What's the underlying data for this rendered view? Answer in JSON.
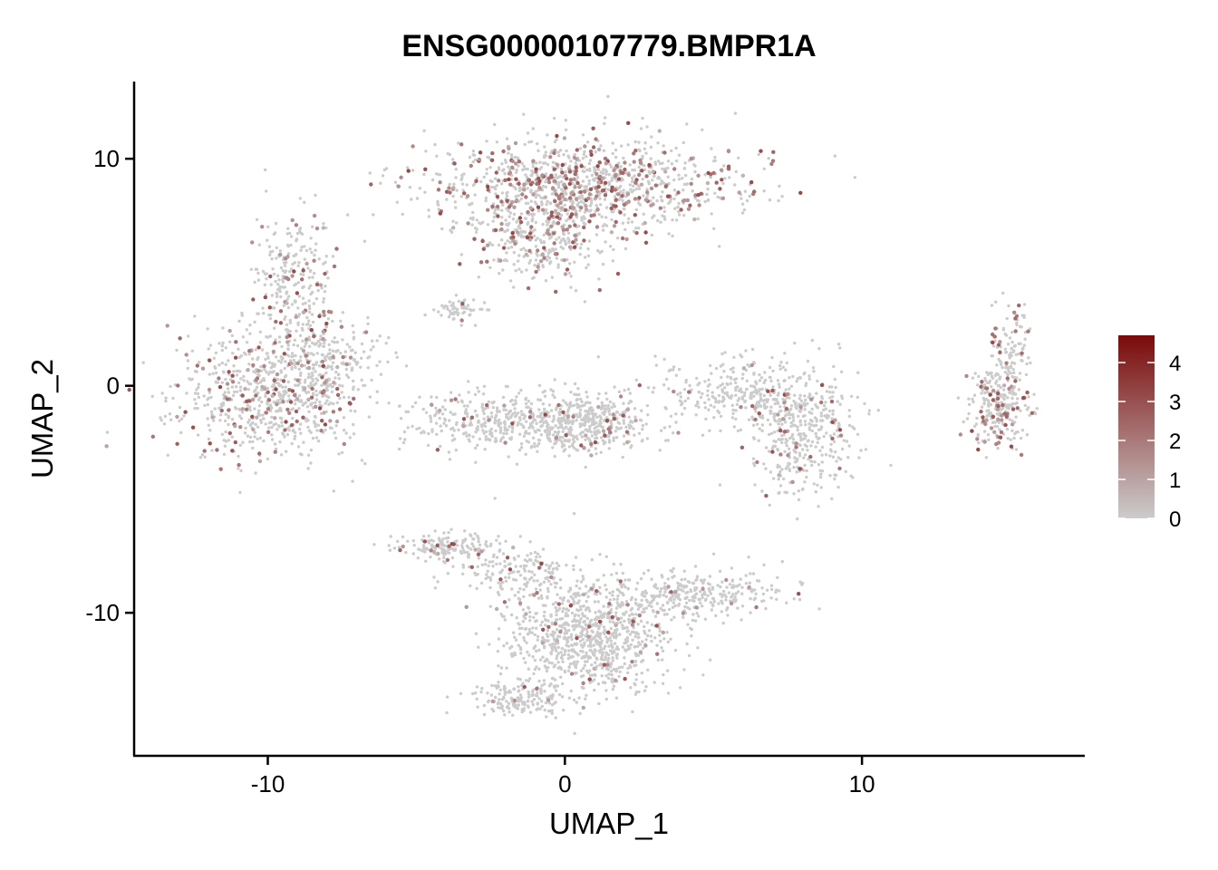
{
  "chart_data": {
    "type": "scatter",
    "title": "ENSG00000107779.BMPR1A",
    "xlabel": "UMAP_1",
    "ylabel": "UMAP_2",
    "xlim": [
      -14.5,
      17.5
    ],
    "ylim": [
      -16.3,
      13.4
    ],
    "x_ticks": [
      -10,
      0,
      10
    ],
    "x_tick_labels": [
      "-10",
      "0",
      "10"
    ],
    "y_ticks": [
      -10,
      0,
      10
    ],
    "y_tick_labels": [
      "-10",
      "0",
      "10"
    ],
    "grid": false,
    "legend_position": "right",
    "color_scale": {
      "low_color": "#cccccc",
      "high_color": "#7a0a0a",
      "min": 0,
      "max": 4.7,
      "breaks": [
        0,
        1,
        2,
        3,
        4
      ],
      "break_labels": [
        "0",
        "1",
        "2",
        "3",
        "4"
      ]
    },
    "clusters": [
      {
        "cx": -10.0,
        "cy": -0.5,
        "sx": 1.6,
        "sy": 1.4,
        "n": 700,
        "expr_rate": 0.18
      },
      {
        "cx": -9.2,
        "cy": 4.5,
        "sx": 0.7,
        "sy": 1.5,
        "n": 260,
        "expr_rate": 0.18
      },
      {
        "cx": -8.0,
        "cy": 1.2,
        "sx": 0.9,
        "sy": 0.8,
        "n": 180,
        "expr_rate": 0.12
      },
      {
        "cx": 0.5,
        "cy": 8.8,
        "sx": 2.6,
        "sy": 1.1,
        "n": 1100,
        "expr_rate": 0.24
      },
      {
        "cx": -0.8,
        "cy": 6.5,
        "sx": 1.0,
        "sy": 1.0,
        "n": 300,
        "expr_rate": 0.22
      },
      {
        "cx": -3.6,
        "cy": 3.4,
        "sx": 0.4,
        "sy": 0.3,
        "n": 60,
        "expr_rate": 0.02
      },
      {
        "cx": -1.2,
        "cy": -1.6,
        "sx": 2.0,
        "sy": 0.7,
        "n": 550,
        "expr_rate": 0.04
      },
      {
        "cx": 1.0,
        "cy": -1.6,
        "sx": 0.9,
        "sy": 0.6,
        "n": 220,
        "expr_rate": 0.06
      },
      {
        "cx": 6.2,
        "cy": -0.2,
        "sx": 1.5,
        "sy": 0.7,
        "n": 300,
        "expr_rate": 0.05
      },
      {
        "cx": 8.0,
        "cy": -2.3,
        "sx": 0.9,
        "sy": 1.2,
        "n": 380,
        "expr_rate": 0.08
      },
      {
        "cx": 14.6,
        "cy": -1.0,
        "sx": 0.5,
        "sy": 0.9,
        "n": 230,
        "expr_rate": 0.2
      },
      {
        "cx": 15.0,
        "cy": 1.5,
        "sx": 0.35,
        "sy": 0.9,
        "n": 120,
        "expr_rate": 0.16
      },
      {
        "cx": -4.0,
        "cy": -7.1,
        "sx": 0.8,
        "sy": 0.3,
        "n": 150,
        "expr_rate": 0.1
      },
      {
        "cx": -1.6,
        "cy": -8.2,
        "sx": 1.0,
        "sy": 0.6,
        "n": 160,
        "expr_rate": 0.05
      },
      {
        "cx": 0.8,
        "cy": -11.0,
        "sx": 1.4,
        "sy": 1.3,
        "n": 900,
        "expr_rate": 0.04
      },
      {
        "cx": 4.5,
        "cy": -9.2,
        "sx": 1.4,
        "sy": 0.5,
        "n": 300,
        "expr_rate": 0.05
      },
      {
        "cx": -1.5,
        "cy": -13.8,
        "sx": 0.8,
        "sy": 0.35,
        "n": 160,
        "expr_rate": 0.05
      }
    ]
  }
}
